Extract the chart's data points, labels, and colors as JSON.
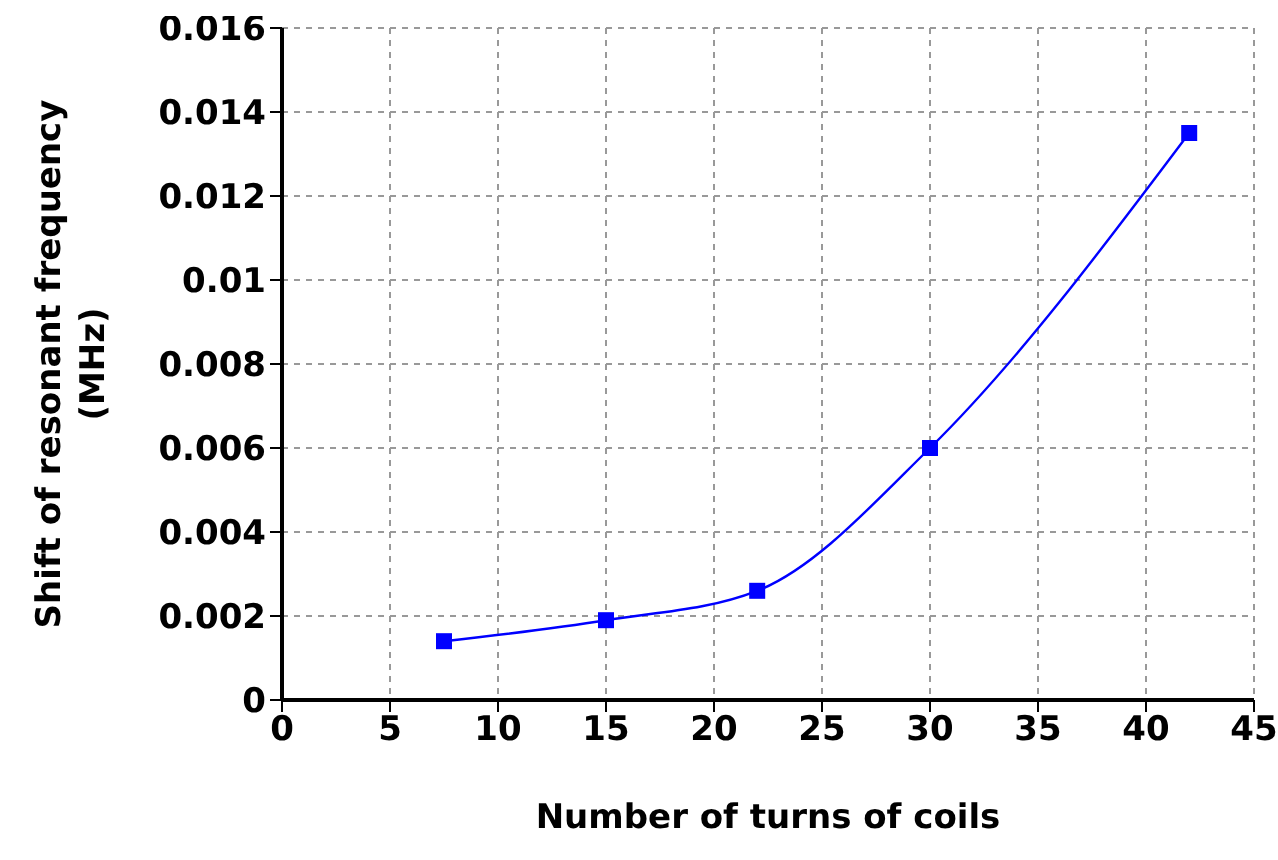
{
  "chart_data": {
    "type": "line",
    "xlabel": "Number of turns of coils",
    "ylabel": "Shift of resonant frequency (MHz)",
    "x": [
      7.5,
      15,
      22,
      30,
      42
    ],
    "series": [
      {
        "color": "#0000ff",
        "values": [
          0.0014,
          0.0019,
          0.0026,
          0.006,
          0.0135
        ]
      }
    ],
    "xlim": [
      0,
      45
    ],
    "xticks": [
      0,
      5,
      10,
      15,
      20,
      25,
      30,
      35,
      40,
      45
    ],
    "ylim": [
      0,
      0.016
    ],
    "yticks": [
      0,
      0.002,
      0.004,
      0.006,
      0.008,
      0.01,
      0.012,
      0.014,
      0.016
    ],
    "grid": true,
    "marker": "square",
    "line_style": "solid"
  }
}
